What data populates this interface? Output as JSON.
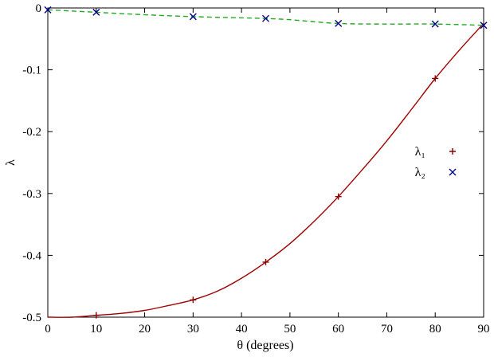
{
  "figure": {
    "background": "#ffffff"
  },
  "chart_data": {
    "type": "line",
    "title": "",
    "xlabel": "θ (degrees)",
    "ylabel": "λ",
    "xlim": [
      0,
      90
    ],
    "ylim": [
      -0.5,
      0
    ],
    "xticks": [
      0,
      10,
      20,
      30,
      40,
      50,
      60,
      70,
      80,
      90
    ],
    "yticks": [
      0,
      -0.1,
      -0.2,
      -0.3,
      -0.4,
      -0.5
    ],
    "grid": false,
    "legend_position": "inside-right-center",
    "series": [
      {
        "name": "λ₁",
        "line_color": "#a00000",
        "marker": "plus",
        "marker_color": "#8b0000",
        "dash": "solid",
        "line": {
          "x": [
            0,
            5,
            10,
            15,
            20,
            25,
            30,
            35,
            40,
            45,
            50,
            55,
            60,
            65,
            70,
            75,
            80,
            85,
            90
          ],
          "y": [
            -0.5,
            -0.5,
            -0.497,
            -0.494,
            -0.489,
            -0.481,
            -0.472,
            -0.458,
            -0.437,
            -0.411,
            -0.381,
            -0.345,
            -0.305,
            -0.261,
            -0.215,
            -0.165,
            -0.114,
            -0.068,
            -0.025
          ]
        },
        "points": {
          "x": [
            10,
            30,
            45,
            60,
            80
          ],
          "y": [
            -0.497,
            -0.472,
            -0.411,
            -0.305,
            -0.114
          ]
        }
      },
      {
        "name": "λ₂",
        "line_color": "#1faa1f",
        "marker": "cross",
        "marker_color": "#00008b",
        "dash": "dashed",
        "line": {
          "x": [
            0,
            10,
            20,
            30,
            40,
            45,
            50,
            60,
            70,
            80,
            90
          ],
          "y": [
            -0.003,
            -0.007,
            -0.011,
            -0.014,
            -0.016,
            -0.017,
            -0.019,
            -0.025,
            -0.026,
            -0.026,
            -0.028
          ]
        },
        "points": {
          "x": [
            0,
            10,
            30,
            45,
            60,
            80,
            90
          ],
          "y": [
            -0.003,
            -0.007,
            -0.014,
            -0.017,
            -0.025,
            -0.026,
            -0.028
          ]
        }
      }
    ]
  }
}
